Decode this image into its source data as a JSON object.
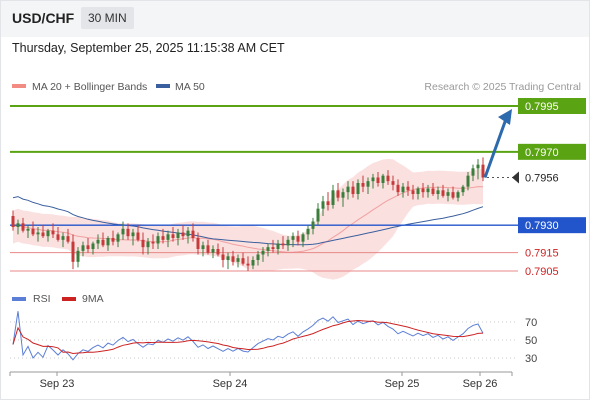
{
  "header": {
    "symbol": "USD/CHF",
    "timeframe": "30 MIN",
    "datetime": "Thursday, September 25, 2025 11:15:38 AM CET"
  },
  "colors": {
    "bull": "#3b7d3b",
    "bear": "#c63a3a",
    "bollinger_fill": "#fbe0e0",
    "ma20": "#f2a0a0",
    "ma50": "#3a5f9e",
    "resistance": "#5aa312",
    "pivot": "#2255cc",
    "support": "#e88888",
    "rsi": "#5b7fd6",
    "rsi_ma": "#cc2222",
    "arrow": "#2d6aad"
  },
  "chart_data": [
    {
      "type": "candlestick",
      "title": "USD/CHF 30 MIN",
      "legend": [
        {
          "name": "MA 20 + Bollinger Bands",
          "color": "#f28b82"
        },
        {
          "name": "MA 50",
          "color": "#3a5f9e"
        }
      ],
      "watermark": "Research © 2025 Trading Central",
      "x_ticks": [
        "Sep 23",
        "Sep 24",
        "Sep 25",
        "Sep 26"
      ],
      "ylim": [
        0.7895,
        0.8
      ],
      "last_price": 0.7956,
      "candles": [
        [
          0.7935,
          0.7938,
          0.7927,
          0.7929
        ],
        [
          0.7929,
          0.7933,
          0.7925,
          0.7931
        ],
        [
          0.7931,
          0.7934,
          0.7926,
          0.7927
        ],
        [
          0.7927,
          0.793,
          0.7923,
          0.7928
        ],
        [
          0.7928,
          0.7932,
          0.7924,
          0.7925
        ],
        [
          0.7925,
          0.7929,
          0.7921,
          0.7926
        ],
        [
          0.7926,
          0.793,
          0.7923,
          0.7924
        ],
        [
          0.7924,
          0.7928,
          0.7921,
          0.7927
        ],
        [
          0.7927,
          0.7931,
          0.7923,
          0.7925
        ],
        [
          0.7925,
          0.7929,
          0.7921,
          0.7922
        ],
        [
          0.7922,
          0.7926,
          0.7918,
          0.7924
        ],
        [
          0.7924,
          0.7928,
          0.792,
          0.7921
        ],
        [
          0.7921,
          0.7925,
          0.7906,
          0.791
        ],
        [
          0.791,
          0.7918,
          0.7907,
          0.7916
        ],
        [
          0.7916,
          0.7921,
          0.7913,
          0.7919
        ],
        [
          0.7919,
          0.7923,
          0.7915,
          0.7917
        ],
        [
          0.7917,
          0.7921,
          0.7914,
          0.792
        ],
        [
          0.792,
          0.7925,
          0.7917,
          0.7922
        ],
        [
          0.7922,
          0.7926,
          0.7918,
          0.7919
        ],
        [
          0.7919,
          0.7924,
          0.7916,
          0.7923
        ],
        [
          0.7923,
          0.7927,
          0.7919,
          0.7921
        ],
        [
          0.7921,
          0.7926,
          0.7918,
          0.7925
        ],
        [
          0.7925,
          0.7932,
          0.7922,
          0.7928
        ],
        [
          0.7928,
          0.7931,
          0.7922,
          0.7924
        ],
        [
          0.7924,
          0.7928,
          0.7919,
          0.7926
        ],
        [
          0.7926,
          0.793,
          0.7921,
          0.7922
        ],
        [
          0.7922,
          0.7926,
          0.7914,
          0.7918
        ],
        [
          0.7918,
          0.7923,
          0.7914,
          0.7921
        ],
        [
          0.7921,
          0.7925,
          0.7917,
          0.792
        ],
        [
          0.792,
          0.7926,
          0.7917,
          0.7924
        ],
        [
          0.7924,
          0.7928,
          0.792,
          0.7922
        ],
        [
          0.7922,
          0.7927,
          0.7918,
          0.7925
        ],
        [
          0.7925,
          0.7929,
          0.7921,
          0.7923
        ],
        [
          0.7923,
          0.7928,
          0.7919,
          0.7926
        ],
        [
          0.7926,
          0.793,
          0.7922,
          0.7924
        ],
        [
          0.7924,
          0.7929,
          0.792,
          0.7927
        ],
        [
          0.7927,
          0.7931,
          0.7921,
          0.7923
        ],
        [
          0.7923,
          0.7926,
          0.7914,
          0.7917
        ],
        [
          0.7917,
          0.7921,
          0.7913,
          0.7919
        ],
        [
          0.7919,
          0.7922,
          0.7914,
          0.7915
        ],
        [
          0.7915,
          0.7919,
          0.7912,
          0.7917
        ],
        [
          0.7917,
          0.792,
          0.7913,
          0.7914
        ],
        [
          0.7914,
          0.7918,
          0.7907,
          0.7911
        ],
        [
          0.7911,
          0.7915,
          0.7906,
          0.7913
        ],
        [
          0.7913,
          0.7916,
          0.7908,
          0.791
        ],
        [
          0.791,
          0.7914,
          0.7907,
          0.7912
        ],
        [
          0.7912,
          0.7915,
          0.7908,
          0.7909
        ],
        [
          0.7909,
          0.7913,
          0.7905,
          0.7908
        ],
        [
          0.7908,
          0.7913,
          0.7906,
          0.7911
        ],
        [
          0.7911,
          0.7916,
          0.7908,
          0.7914
        ],
        [
          0.7914,
          0.7918,
          0.791,
          0.7916
        ],
        [
          0.7916,
          0.792,
          0.7913,
          0.7918
        ],
        [
          0.7918,
          0.7922,
          0.7915,
          0.7917
        ],
        [
          0.7917,
          0.7922,
          0.7914,
          0.792
        ],
        [
          0.792,
          0.7924,
          0.7917,
          0.7919
        ],
        [
          0.7919,
          0.7924,
          0.7916,
          0.7922
        ],
        [
          0.7922,
          0.7926,
          0.7918,
          0.7924
        ],
        [
          0.7924,
          0.7927,
          0.7919,
          0.7921
        ],
        [
          0.7921,
          0.7926,
          0.7918,
          0.7925
        ],
        [
          0.7925,
          0.793,
          0.7922,
          0.7928
        ],
        [
          0.7928,
          0.7934,
          0.7925,
          0.7932
        ],
        [
          0.7932,
          0.7942,
          0.793,
          0.7939
        ],
        [
          0.7939,
          0.7946,
          0.7935,
          0.7943
        ],
        [
          0.7943,
          0.7948,
          0.7938,
          0.7941
        ],
        [
          0.7941,
          0.7952,
          0.7939,
          0.7949
        ],
        [
          0.7949,
          0.7953,
          0.7943,
          0.7945
        ],
        [
          0.7945,
          0.795,
          0.794,
          0.7948
        ],
        [
          0.7948,
          0.7954,
          0.7944,
          0.7951
        ],
        [
          0.7951,
          0.7954,
          0.7945,
          0.7947
        ],
        [
          0.7947,
          0.7955,
          0.7944,
          0.7953
        ],
        [
          0.7953,
          0.7957,
          0.7948,
          0.7951
        ],
        [
          0.7951,
          0.7956,
          0.7947,
          0.7954
        ],
        [
          0.7954,
          0.7958,
          0.795,
          0.7956
        ],
        [
          0.7956,
          0.7959,
          0.7951,
          0.7953
        ],
        [
          0.7953,
          0.7958,
          0.795,
          0.7957
        ],
        [
          0.7957,
          0.796,
          0.7952,
          0.7954
        ],
        [
          0.7954,
          0.7957,
          0.7949,
          0.7952
        ],
        [
          0.7952,
          0.7955,
          0.7946,
          0.7948
        ],
        [
          0.7948,
          0.7953,
          0.7945,
          0.7951
        ],
        [
          0.7951,
          0.7954,
          0.7946,
          0.7949
        ],
        [
          0.7949,
          0.7952,
          0.7944,
          0.7947
        ],
        [
          0.7947,
          0.7951,
          0.7944,
          0.795
        ],
        [
          0.795,
          0.7953,
          0.7945,
          0.7948
        ],
        [
          0.7948,
          0.7952,
          0.7945,
          0.795
        ],
        [
          0.795,
          0.7953,
          0.7946,
          0.7947
        ],
        [
          0.7947,
          0.7951,
          0.7944,
          0.7949
        ],
        [
          0.7949,
          0.7952,
          0.7945,
          0.7946
        ],
        [
          0.7946,
          0.795,
          0.7943,
          0.7948
        ],
        [
          0.7948,
          0.7951,
          0.7944,
          0.7945
        ],
        [
          0.7945,
          0.7949,
          0.7943,
          0.7948
        ],
        [
          0.7948,
          0.7952,
          0.7946,
          0.7951
        ],
        [
          0.7951,
          0.7959,
          0.7949,
          0.7957
        ],
        [
          0.7957,
          0.7963,
          0.7954,
          0.7961
        ],
        [
          0.7961,
          0.7966,
          0.7955,
          0.7963
        ],
        [
          0.7963,
          0.7967,
          0.7954,
          0.7956
        ]
      ],
      "levels": [
        {
          "value": 0.7995,
          "label": "0.7995",
          "kind": "resistance"
        },
        {
          "value": 0.797,
          "label": "0.7970",
          "kind": "resistance"
        },
        {
          "value": 0.7956,
          "label": "0.7956",
          "kind": "current"
        },
        {
          "value": 0.793,
          "label": "0.7930",
          "kind": "pivot"
        },
        {
          "value": 0.7915,
          "label": "0.7915",
          "kind": "support"
        },
        {
          "value": 0.7905,
          "label": "0.7905",
          "kind": "support"
        }
      ],
      "forecast_arrow": {
        "from": 0.7956,
        "to": 0.7995
      }
    },
    {
      "type": "line",
      "title": "RSI",
      "legend": [
        {
          "name": "RSI",
          "color": "#5b7fd6"
        },
        {
          "name": "9MA",
          "color": "#cc2222"
        }
      ],
      "y_ticks": [
        "70",
        "50",
        "30"
      ],
      "ylim": [
        20,
        85
      ]
    }
  ]
}
